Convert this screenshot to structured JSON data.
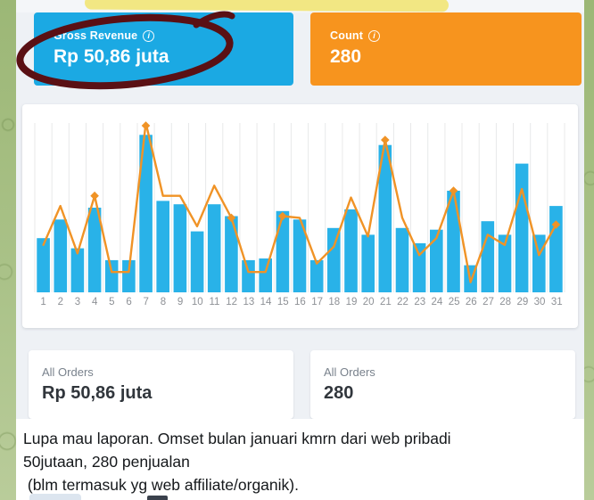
{
  "colors": {
    "revenue_card": "#1ba9e3",
    "count_card": "#f7941e",
    "bars": "#29b2e8",
    "line": "#f09326",
    "marker_circle": "#5a1014",
    "highlight": "#f1e67c"
  },
  "top_cards": {
    "revenue": {
      "label": "Gross Revenue",
      "info_glyph": "i",
      "value": "Rp 50,86 juta"
    },
    "count": {
      "label": "Count",
      "info_glyph": "i",
      "value": "280"
    }
  },
  "bottom_cards": {
    "orders_revenue": {
      "label": "All Orders",
      "value": "Rp 50,86 juta"
    },
    "orders_count": {
      "label": "All Orders",
      "value": "280"
    }
  },
  "chart_data": {
    "type": "bar",
    "title": "",
    "xlabel": "",
    "ylabel": "",
    "x_labels": [
      "1",
      "2",
      "3",
      "4",
      "5",
      "6",
      "7",
      "8",
      "9",
      "10",
      "11",
      "12",
      "13",
      "14",
      "15",
      "16",
      "17",
      "18",
      "19",
      "20",
      "21",
      "22",
      "23",
      "24",
      "25",
      "26",
      "27",
      "28",
      "29",
      "30",
      "31"
    ],
    "series": [
      {
        "name": "daily-orders-bars",
        "type": "bar",
        "color": "#29b2e8",
        "values": [
          32,
          43,
          26,
          50,
          19,
          19,
          93,
          54,
          52,
          36,
          52,
          45,
          19,
          20,
          48,
          43,
          19,
          38,
          49,
          34,
          87,
          38,
          29,
          37,
          60,
          16,
          42,
          34,
          76,
          34,
          51
        ]
      },
      {
        "name": "daily-trend-line",
        "type": "line",
        "color": "#f09326",
        "values": [
          28,
          51,
          23,
          57,
          12,
          12,
          100,
          57,
          57,
          39,
          63,
          44,
          12,
          12,
          45,
          44,
          17,
          27,
          56,
          33,
          90,
          44,
          22,
          32,
          60,
          6,
          34,
          28,
          61,
          22,
          40
        ]
      }
    ],
    "marker_days": [
      4,
      7,
      12,
      15,
      21,
      25,
      31
    ],
    "ylim": [
      0,
      100
    ],
    "grid": "vertical",
    "legend_position": "none",
    "note": "values are percent of plot height; no y-axis labels visible"
  },
  "caption": {
    "lines": [
      "Lupa mau laporan. Omset bulan januari kmrn dari web pribadi",
      "50jutaan, 280 penjualan",
      " (blm termasuk yg web affiliate/organik)."
    ]
  }
}
